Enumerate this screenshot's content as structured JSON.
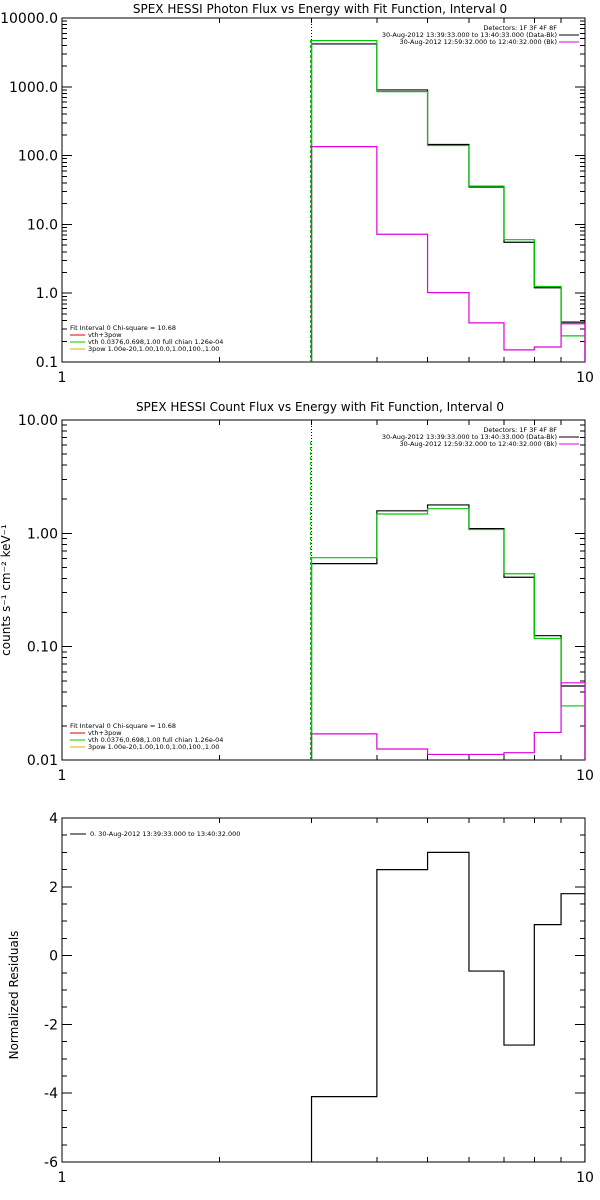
{
  "chart_data": [
    {
      "type": "line",
      "title": "SPEX HESSI Photon Flux vs Energy with Fit Function, Interval 0",
      "xscale": "log",
      "yscale": "log",
      "xlim": [
        1,
        10
      ],
      "ylim": [
        0.1,
        10000
      ],
      "x_tick_labels": [
        "1",
        "10"
      ],
      "y_ticks": [
        0.1,
        1,
        10,
        100,
        1000,
        10000
      ],
      "y_tick_labels": [
        "0.1",
        "1.0",
        "10.0",
        "100.0",
        "1000.0",
        "10000.0"
      ],
      "edges": [
        3.0,
        3.5,
        4.0,
        4.5,
        5.0,
        5.5,
        6.0,
        6.5,
        7.0,
        7.5,
        8.0,
        8.5,
        9.0,
        10.0
      ],
      "vline": {
        "x": 3.0,
        "colors": [
          "#000000",
          "#00c800"
        ]
      },
      "legend_topright": {
        "title": "Detectors: 1F 3F 4F 8F",
        "entries": [
          {
            "label": "30-Aug-2012 13:39:33.000 to 13:40:33.000 (Data-Bk)",
            "color": "#000000"
          },
          {
            "label": "30-Aug-2012 12:59:32.000 to 12:40:32.000 (Bk)",
            "color": "#e000e0"
          }
        ]
      },
      "legend_bottomleft": {
        "title": "Fit Interval 0   Chi-square = 10.68",
        "entries": [
          {
            "label": "vth+3pow",
            "color": "#e00000"
          },
          {
            "label": "vth 0.0376,0.698,1.00  full chian 1.26e-04",
            "color": "#00c800"
          },
          {
            "label": "3pow 1.00e-20,1.00,10.0,1.00,100.,1.00",
            "color": "#e0b000"
          }
        ]
      },
      "series": [
        {
          "color": "#000000",
          "values": [
            4200,
            4200,
            900,
            900,
            145,
            145,
            35,
            35,
            5.5,
            5.5,
            1.2,
            1.2,
            0.38
          ]
        },
        {
          "color": "#00c800",
          "values": [
            4700,
            4700,
            850,
            850,
            140,
            140,
            36,
            36,
            6.0,
            6.0,
            1.25,
            1.25,
            0.24
          ]
        },
        {
          "color": "#e000e0",
          "values": [
            135,
            135,
            7.2,
            7.2,
            1.02,
            1.02,
            0.37,
            0.37,
            0.15,
            0.15,
            0.165,
            0.165,
            0.36
          ]
        }
      ]
    },
    {
      "type": "line",
      "title": "SPEX HESSI Count Flux vs Energy with Fit Function, Interval 0",
      "ylabel": "counts s⁻¹ cm⁻² keV⁻¹",
      "xscale": "log",
      "yscale": "log",
      "xlim": [
        1,
        10
      ],
      "ylim": [
        0.01,
        10
      ],
      "x_tick_labels": [
        "1",
        "10"
      ],
      "y_ticks": [
        0.01,
        0.1,
        1,
        10
      ],
      "y_tick_labels": [
        "0.01",
        "0.10",
        "1.00",
        "10.00"
      ],
      "edges": [
        3.0,
        3.5,
        4.0,
        4.5,
        5.0,
        5.5,
        6.0,
        6.5,
        7.0,
        7.5,
        8.0,
        8.5,
        9.0,
        10.0
      ],
      "vline": {
        "x": 3.0,
        "colors": [
          "#000000",
          "#00c800"
        ]
      },
      "legend_topright": {
        "title": "Detectors: 1F 3F 4F 8F",
        "entries": [
          {
            "label": "30-Aug-2012 13:39:33.000 to 13:40:33.000 (Data-Bk)",
            "color": "#000000"
          },
          {
            "label": "30-Aug-2012 12:59:32.000 to 12:40:32.000 (Bk)",
            "color": "#e000e0"
          }
        ]
      },
      "legend_bottomleft": {
        "title": "Fit Interval 0   Chi-square = 10.68",
        "entries": [
          {
            "label": "vth+3pow",
            "color": "#e00000"
          },
          {
            "label": "vth 0.0376,0.698,1.00  full chian 1.26e-04",
            "color": "#00c800"
          },
          {
            "label": "3pow 1.00e-20,1.00,10.0,1.00,100.,1.00",
            "color": "#e0b000"
          }
        ]
      },
      "series": [
        {
          "color": "#000000",
          "values": [
            0.54,
            0.54,
            1.58,
            1.58,
            1.78,
            1.78,
            1.1,
            1.1,
            0.41,
            0.41,
            0.125,
            0.125,
            0.045
          ]
        },
        {
          "color": "#00c800",
          "values": [
            0.61,
            0.61,
            1.48,
            1.48,
            1.65,
            1.65,
            1.08,
            1.08,
            0.44,
            0.44,
            0.118,
            0.118,
            0.03
          ]
        },
        {
          "color": "#e000e0",
          "values": [
            0.017,
            0.017,
            0.0125,
            0.0125,
            0.0112,
            0.0112,
            0.0112,
            0.0112,
            0.0116,
            0.0116,
            0.0175,
            0.0175,
            0.048
          ]
        }
      ]
    },
    {
      "type": "line",
      "ylabel": "Normalized Residuals",
      "xscale": "log",
      "yscale": "linear",
      "xlim": [
        1,
        10
      ],
      "ylim": [
        -6,
        4
      ],
      "x_tick_labels": [
        "1",
        "10"
      ],
      "y_ticks": [
        -6,
        -4,
        -2,
        0,
        2,
        4
      ],
      "y_tick_labels": [
        "-6",
        "-4",
        "-2",
        "0",
        "2",
        "4"
      ],
      "edges": [
        3.0,
        3.5,
        4.0,
        4.5,
        5.0,
        5.5,
        6.0,
        6.5,
        7.0,
        7.5,
        8.0,
        8.5,
        9.0,
        10.0
      ],
      "legend_topleft": {
        "entries": [
          {
            "label": "0. 30-Aug-2012 13:39:33.000 to 13:40:32.000",
            "color": "#000000"
          }
        ]
      },
      "series": [
        {
          "color": "#000000",
          "values": [
            -4.1,
            -4.1,
            2.5,
            2.5,
            3.0,
            3.0,
            -0.45,
            -0.45,
            -2.6,
            -2.6,
            0.9,
            0.9,
            1.8
          ]
        }
      ]
    }
  ]
}
